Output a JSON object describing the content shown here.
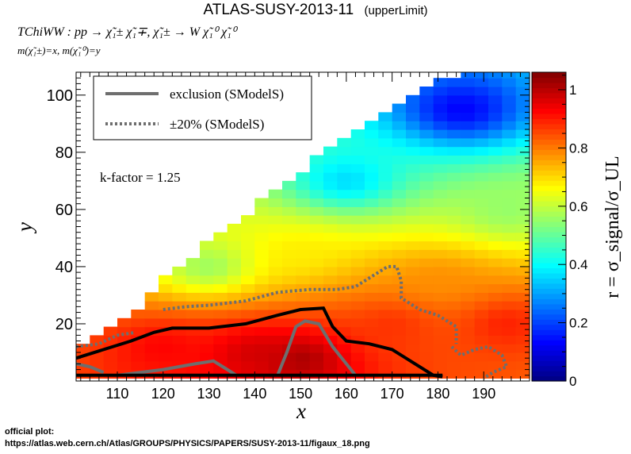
{
  "header": {
    "title": "ATLAS-SUSY-2013-11",
    "subtitle": "(upperLimit)",
    "process": "TChiWW : pp → χ̃₁± χ̃₁∓, χ̃₁± → W χ̃₁⁰ χ̃₁⁰",
    "masses": "m(χ̃₁±)=x, m(χ̃₁⁰)=y"
  },
  "footer": {
    "line1": "official plot:",
    "line2": "https://atlas.web.cern.ch/Atlas/GROUPS/PHYSICS/PAPERS/SUSY-2013-11/figaux_18.png"
  },
  "chart_data": {
    "type": "heatmap",
    "title": "ATLAS-SUSY-2013-11 (upperLimit)",
    "xlabel": "x",
    "ylabel": "y",
    "zlabel": "r = σ_signal/σ_UL",
    "xlim": [
      101,
      200
    ],
    "ylim": [
      0,
      108
    ],
    "zlim": [
      0,
      1.06
    ],
    "xticks": [
      110,
      120,
      130,
      140,
      150,
      160,
      170,
      180,
      190
    ],
    "yticks": [
      20,
      40,
      60,
      80,
      100
    ],
    "zticks": [
      0,
      0.2,
      0.4,
      0.6,
      0.8,
      1
    ],
    "colormap": "jet",
    "annotation": "k-factor = 1.25",
    "legend": {
      "placement": "top-left",
      "entries": [
        {
          "label": "exclusion (SModelS)",
          "style": "solid",
          "color": "#6e6e6e"
        },
        {
          "label": "±20% (SModelS)",
          "style": "dotted",
          "color": "#6e6e6e"
        }
      ]
    },
    "grid_boundary_upper": [
      [
        101,
        10
      ],
      [
        104,
        13
      ],
      [
        107,
        16
      ],
      [
        110,
        19
      ],
      [
        113,
        23
      ],
      [
        116,
        27
      ],
      [
        119,
        32
      ],
      [
        122,
        37
      ],
      [
        126,
        42
      ],
      [
        130,
        47
      ],
      [
        134,
        52
      ],
      [
        138,
        57
      ],
      [
        142,
        62
      ],
      [
        146,
        67
      ],
      [
        150,
        72
      ],
      [
        155,
        78
      ],
      [
        160,
        84
      ],
      [
        165,
        89
      ],
      [
        170,
        94
      ],
      [
        175,
        99
      ],
      [
        180,
        103
      ],
      [
        185,
        107
      ],
      [
        190,
        108
      ],
      [
        195,
        108
      ],
      [
        199,
        108
      ]
    ],
    "r_samples": [
      {
        "x": 150,
        "y": 8,
        "r": 1.03
      },
      {
        "x": 140,
        "y": 10,
        "r": 0.98
      },
      {
        "x": 120,
        "y": 12,
        "r": 0.93
      },
      {
        "x": 170,
        "y": 20,
        "r": 0.88
      },
      {
        "x": 180,
        "y": 35,
        "r": 0.78
      },
      {
        "x": 150,
        "y": 45,
        "r": 0.68
      },
      {
        "x": 130,
        "y": 40,
        "r": 0.55
      },
      {
        "x": 160,
        "y": 70,
        "r": 0.35
      },
      {
        "x": 185,
        "y": 95,
        "r": 0.12
      },
      {
        "x": 195,
        "y": 60,
        "r": 0.55
      },
      {
        "x": 195,
        "y": 20,
        "r": 0.9
      }
    ],
    "series": [
      {
        "name": "exclusion (SModelS)",
        "style": "solid",
        "color": "#000000",
        "points": [
          [
            101,
            8
          ],
          [
            107,
            11
          ],
          [
            113,
            14
          ],
          [
            118,
            17
          ],
          [
            122,
            18.5
          ],
          [
            130,
            18.5
          ],
          [
            138,
            20
          ],
          [
            145,
            23
          ],
          [
            150,
            25
          ],
          [
            155,
            25.5
          ],
          [
            157,
            19
          ],
          [
            160,
            14
          ],
          [
            165,
            13
          ],
          [
            170,
            11
          ],
          [
            175,
            6
          ],
          [
            179,
            2
          ],
          [
            181,
            1.5
          ]
        ]
      },
      {
        "name": "±20% (SModelS)",
        "style": "dotted",
        "color": "#6e6e6e",
        "points": [
          [
            120,
            25
          ],
          [
            125,
            26
          ],
          [
            130,
            26.5
          ],
          [
            138,
            28
          ],
          [
            145,
            31
          ],
          [
            152,
            32
          ],
          [
            158,
            32
          ],
          [
            162,
            33
          ],
          [
            166,
            37
          ],
          [
            169,
            40
          ],
          [
            171,
            40
          ],
          [
            172,
            35
          ],
          [
            172,
            29
          ],
          [
            176,
            25
          ],
          [
            180,
            23
          ],
          [
            184,
            19
          ],
          [
            184,
            13
          ]
        ]
      },
      {
        "name": "±20% (SModelS) lower",
        "style": "dotted",
        "color": "#6e6e6e",
        "points": [
          [
            101,
            12
          ],
          [
            106,
            13
          ],
          [
            110,
            16
          ],
          [
            114,
            17
          ]
        ]
      },
      {
        "name": "exclusion (SModelS) inner",
        "style": "solid",
        "color": "#6e6e6e",
        "points": [
          [
            110,
            2
          ],
          [
            120,
            4
          ],
          [
            127,
            6
          ],
          [
            131,
            7
          ],
          [
            133,
            5
          ],
          [
            136,
            2
          ]
        ]
      },
      {
        "name": "exclusion (SModelS) inner 2",
        "style": "solid",
        "color": "#6e6e6e",
        "points": [
          [
            145,
            2
          ],
          [
            147,
            10
          ],
          [
            149,
            19
          ],
          [
            151,
            21
          ],
          [
            154,
            20
          ],
          [
            157,
            12
          ],
          [
            160,
            6
          ],
          [
            162,
            2
          ]
        ]
      },
      {
        "name": "exclusion (SModelS) left",
        "style": "solid",
        "color": "#6e6e6e",
        "points": [
          [
            101,
            6
          ],
          [
            104,
            5
          ],
          [
            107,
            3
          ]
        ]
      },
      {
        "name": "±20% (SModelS) right",
        "style": "dotted",
        "color": "#6e6e6e",
        "points": [
          [
            183,
            12
          ],
          [
            185,
            9
          ],
          [
            188,
            11
          ],
          [
            191,
            12
          ],
          [
            194,
            9
          ],
          [
            195,
            5
          ],
          [
            192,
            3
          ],
          [
            190,
            1
          ]
        ]
      },
      {
        "name": "baseline",
        "style": "solid",
        "color": "#000000",
        "points": [
          [
            101,
            2
          ],
          [
            181,
            2
          ]
        ]
      }
    ]
  }
}
